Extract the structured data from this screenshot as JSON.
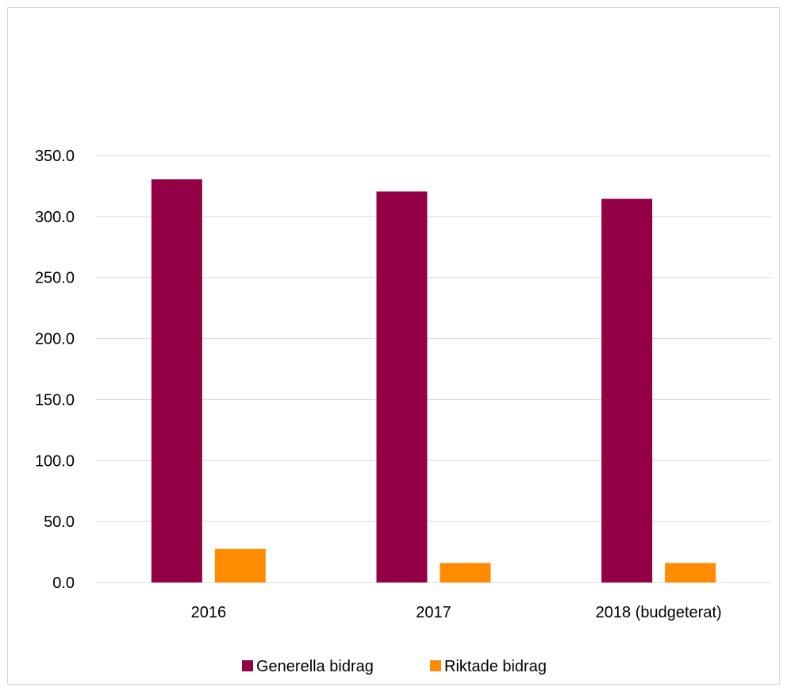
{
  "chart_data": {
    "type": "bar",
    "categories": [
      "2016",
      "2017",
      "2018 (budgeterat)"
    ],
    "series": [
      {
        "name": "Generella bidrag",
        "values": [
          330.5,
          320.5,
          314.5
        ],
        "color": "#930045"
      },
      {
        "name": "Riktade bidrag",
        "values": [
          27.5,
          16,
          16
        ],
        "color": "#FF8C00"
      }
    ],
    "yticks": [
      "0.0",
      "50.0",
      "100.0",
      "150.0",
      "200.0",
      "250.0",
      "300.0",
      "350.0"
    ],
    "ylim": [
      0,
      350
    ],
    "grid": true,
    "legend_position": "bottom",
    "gridline_color": "#d9d9d9"
  }
}
